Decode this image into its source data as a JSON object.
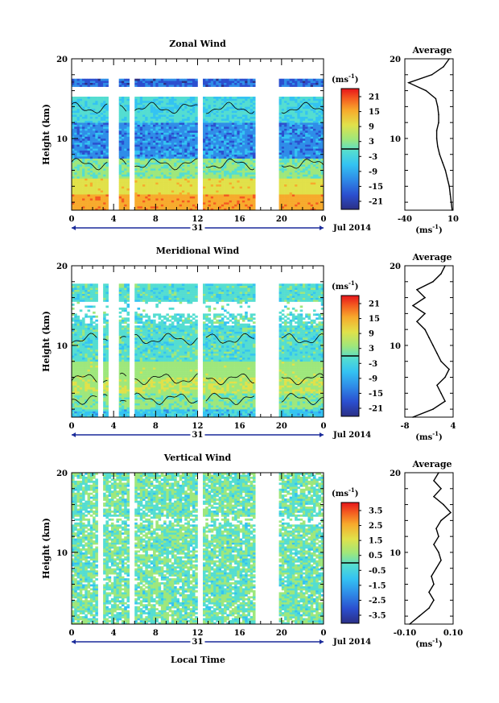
{
  "chart_data": [
    {
      "type": "heatmap",
      "title": "Zonal Wind",
      "ylabel": "Height (km)",
      "x_ticks": [
        "0",
        "4",
        "8",
        "12",
        "16",
        "20",
        "0"
      ],
      "y_ticks": [
        "10",
        "20"
      ],
      "xlim": [
        0,
        24
      ],
      "ylim": [
        1,
        20
      ],
      "day_label": "31",
      "month_label": "Jul 2014",
      "data_gaps_hours": [
        [
          3.6,
          4.5
        ],
        [
          5.4,
          6.0
        ],
        [
          12.0,
          12.6
        ],
        [
          17.5,
          19.8
        ]
      ],
      "colorbar": {
        "unit": "(ms",
        "unit_exp": "-1",
        "unit_close": ")",
        "ticks": [
          "21",
          "15",
          "9",
          "3",
          "-3",
          "-9",
          "-15",
          "-21"
        ],
        "range": [
          -24,
          24
        ]
      },
      "profile_mean_ms": [
        {
          "h": 1,
          "v": 9
        },
        {
          "h": 2,
          "v": 8
        },
        {
          "h": 3,
          "v": 7
        },
        {
          "h": 4,
          "v": 6
        },
        {
          "h": 5,
          "v": 4
        },
        {
          "h": 6,
          "v": 2
        },
        {
          "h": 7,
          "v": -1
        },
        {
          "h": 8,
          "v": -4
        },
        {
          "h": 9,
          "v": -6
        },
        {
          "h": 10,
          "v": -7
        },
        {
          "h": 11,
          "v": -7
        },
        {
          "h": 12,
          "v": -5
        },
        {
          "h": 13,
          "v": -5
        },
        {
          "h": 14,
          "v": -6
        },
        {
          "h": 15,
          "v": -8
        },
        {
          "h": 16,
          "v": -18
        },
        {
          "h": 17,
          "v": -36
        },
        {
          "h": 18,
          "v": -12
        },
        {
          "h": 19,
          "v": 0
        },
        {
          "h": 20,
          "v": 6
        }
      ]
    },
    {
      "type": "heatmap",
      "title": "Meridional Wind",
      "ylabel": "Height (km)",
      "x_ticks": [
        "0",
        "4",
        "8",
        "12",
        "16",
        "20",
        "0"
      ],
      "y_ticks": [
        "10",
        "20"
      ],
      "xlim": [
        0,
        24
      ],
      "ylim": [
        1,
        20
      ],
      "day_label": "31",
      "month_label": "Jul 2014",
      "data_gaps_hours": [
        [
          2.6,
          3.0
        ],
        [
          3.6,
          4.5
        ],
        [
          5.4,
          6.0
        ],
        [
          12.0,
          12.6
        ],
        [
          17.5,
          19.8
        ]
      ],
      "colorbar": {
        "unit": "(ms",
        "unit_exp": "-1",
        "unit_close": ")",
        "ticks": [
          "21",
          "15",
          "9",
          "3",
          "-3",
          "-9",
          "-15",
          "-21"
        ],
        "range": [
          -24,
          24
        ]
      },
      "profile_mean_ms": [
        {
          "h": 1,
          "v": -6
        },
        {
          "h": 2,
          "v": -1
        },
        {
          "h": 3,
          "v": 2
        },
        {
          "h": 4,
          "v": 1
        },
        {
          "h": 5,
          "v": 0
        },
        {
          "h": 6,
          "v": 2
        },
        {
          "h": 7,
          "v": 3
        },
        {
          "h": 8,
          "v": 1
        },
        {
          "h": 9,
          "v": 0
        },
        {
          "h": 10,
          "v": -1
        },
        {
          "h": 11,
          "v": -2
        },
        {
          "h": 12,
          "v": -3
        },
        {
          "h": 13,
          "v": -5
        },
        {
          "h": 14,
          "v": -3
        },
        {
          "h": 15,
          "v": -6
        },
        {
          "h": 16,
          "v": -3
        },
        {
          "h": 17,
          "v": -5
        },
        {
          "h": 18,
          "v": -1
        },
        {
          "h": 19,
          "v": 1
        },
        {
          "h": 20,
          "v": 2
        }
      ]
    },
    {
      "type": "heatmap",
      "title": "Vertical Wind",
      "ylabel": "Height (km)",
      "xlabel": "Local Time",
      "x_ticks": [
        "0",
        "4",
        "8",
        "12",
        "16",
        "20",
        "0"
      ],
      "y_ticks": [
        "10",
        "20"
      ],
      "xlim": [
        0,
        24
      ],
      "ylim": [
        1,
        20
      ],
      "day_label": "31",
      "month_label": "Jul 2014",
      "data_gaps_hours": [
        [
          2.6,
          3.0
        ],
        [
          5.4,
          6.0
        ],
        [
          11.9,
          12.6
        ],
        [
          17.5,
          19.8
        ]
      ],
      "colorbar": {
        "unit": "(ms",
        "unit_exp": "-1",
        "unit_close": ")",
        "ticks": [
          "3.5",
          "2.5",
          "1.5",
          "0.5",
          "-0.5",
          "-1.5",
          "-2.5",
          "-3.5"
        ],
        "range": [
          -4,
          4
        ]
      },
      "profile_mean_ms": [
        {
          "h": 1,
          "v": -0.08
        },
        {
          "h": 2,
          "v": -0.04
        },
        {
          "h": 3,
          "v": 0.0
        },
        {
          "h": 4,
          "v": 0.02
        },
        {
          "h": 5,
          "v": 0.0
        },
        {
          "h": 6,
          "v": 0.02
        },
        {
          "h": 7,
          "v": 0.01
        },
        {
          "h": 8,
          "v": 0.03
        },
        {
          "h": 9,
          "v": 0.05
        },
        {
          "h": 10,
          "v": 0.04
        },
        {
          "h": 11,
          "v": 0.02
        },
        {
          "h": 12,
          "v": 0.04
        },
        {
          "h": 13,
          "v": 0.03
        },
        {
          "h": 14,
          "v": 0.05
        },
        {
          "h": 15,
          "v": 0.09
        },
        {
          "h": 16,
          "v": 0.06
        },
        {
          "h": 17,
          "v": 0.02
        },
        {
          "h": 18,
          "v": 0.05
        },
        {
          "h": 19,
          "v": 0.02
        },
        {
          "h": 20,
          "v": 0.04
        }
      ]
    }
  ],
  "average_panels": [
    {
      "title": "Average",
      "x_ticks": [
        "-40",
        "10"
      ],
      "xlim": [
        -40,
        10
      ],
      "y_ticks": [
        "10",
        "20"
      ],
      "unit": "(ms",
      "unit_exp": "-1",
      "unit_close": ")"
    },
    {
      "title": "Average",
      "x_ticks": [
        "-8",
        "4"
      ],
      "xlim": [
        -8,
        4
      ],
      "y_ticks": [
        "10",
        "20"
      ],
      "unit": "(ms",
      "unit_exp": "-1",
      "unit_close": ")"
    },
    {
      "title": "Average",
      "x_ticks": [
        "-0.10",
        "0.10"
      ],
      "xlim": [
        -0.1,
        0.1
      ],
      "y_ticks": [
        "10",
        "20"
      ],
      "unit": "(ms",
      "unit_exp": "-1",
      "unit_close": ")"
    }
  ],
  "colors": {
    "colorbar": [
      "#2b2f86",
      "#2b4fcf",
      "#2f8de8",
      "#34c3f2",
      "#54ddd1",
      "#9ee77c",
      "#e1e14a",
      "#f7aa2c",
      "#f45a20",
      "#e6151b"
    ]
  }
}
